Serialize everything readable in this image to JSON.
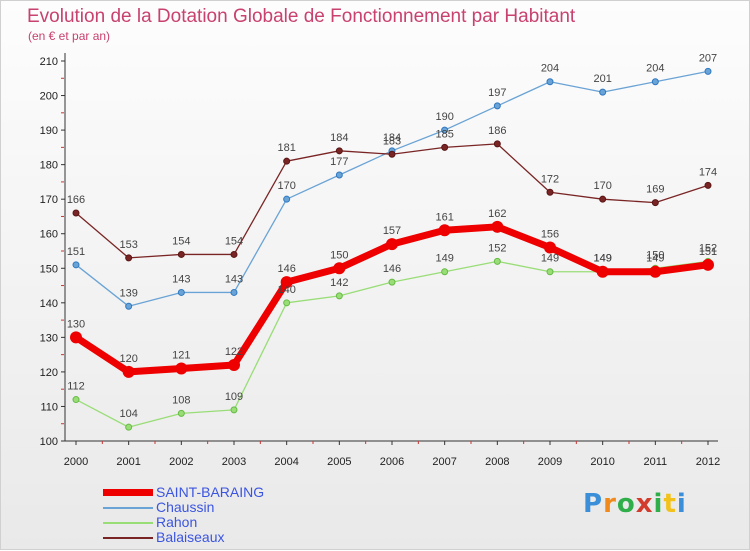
{
  "chart_data": {
    "type": "line",
    "title": "Evolution de la Dotation Globale de Fonctionnement par Habitant",
    "subtitle": "(en € et par an)",
    "xlabel": "",
    "ylabel": "",
    "x": [
      "2000",
      "2001",
      "2002",
      "2003",
      "2004",
      "2005",
      "2006",
      "2007",
      "2008",
      "2009",
      "2010",
      "2011",
      "2012"
    ],
    "ylim": [
      100,
      210
    ],
    "yticks": [
      100,
      110,
      120,
      130,
      140,
      150,
      160,
      170,
      180,
      190,
      200,
      210
    ],
    "grid": false,
    "legend_position": "bottom-left",
    "series": [
      {
        "name": "SAINT-BARAING",
        "color": "#ee0000",
        "values": [
          130,
          120,
          121,
          122,
          146,
          150,
          157,
          161,
          162,
          156,
          149,
          149,
          151
        ]
      },
      {
        "name": "Chaussin",
        "color": "#6aa3d5",
        "values": [
          151,
          139,
          143,
          143,
          170,
          177,
          184,
          190,
          197,
          204,
          201,
          204,
          207
        ]
      },
      {
        "name": "Rahon",
        "color": "#99dd77",
        "values": [
          112,
          104,
          108,
          109,
          140,
          142,
          146,
          149,
          152,
          149,
          149,
          150,
          152
        ]
      },
      {
        "name": "Balaiseaux",
        "color": "#7a2525",
        "values": [
          166,
          153,
          154,
          154,
          181,
          184,
          183,
          185,
          186,
          172,
          170,
          169,
          174
        ]
      }
    ],
    "data_labels": [
      {
        "series": "SAINT-BARAING",
        "labels": [
          "130",
          "120",
          "121",
          "122",
          "146",
          "150",
          "157",
          "161",
          "162",
          "156",
          "149",
          "149",
          "151"
        ]
      },
      {
        "series": "Chaussin",
        "labels": [
          "151",
          "139",
          "143",
          "143",
          "170",
          "177",
          "184",
          "190",
          "197",
          "204",
          "201",
          "204",
          "207"
        ]
      },
      {
        "series": "Rahon",
        "labels": [
          "112",
          "104",
          "108",
          "109",
          "140",
          "142",
          "146",
          "149",
          "152",
          "149",
          "149",
          "150",
          "152"
        ]
      },
      {
        "series": "Balaiseaux",
        "labels": [
          "166",
          "153",
          "154",
          "154",
          "181",
          "184",
          "183",
          "185",
          "186",
          "172",
          "170",
          "169",
          "174"
        ]
      }
    ]
  },
  "legend": {
    "items": [
      {
        "label": "SAINT-BARAING",
        "color": "#ee0000"
      },
      {
        "label": "Chaussin",
        "color": "#6aa3d5"
      },
      {
        "label": "Rahon",
        "color": "#99dd77"
      },
      {
        "label": "Balaiseaux",
        "color": "#7a2525"
      }
    ]
  },
  "logo": {
    "letters": [
      "P",
      "r",
      "o",
      "x",
      "i",
      "t",
      "i"
    ],
    "colors": [
      "#3b8fd8",
      "#f08a1c",
      "#2fae4a",
      "#d23c2c",
      "#2fae4a",
      "#f3c21a",
      "#3b8fd8"
    ]
  }
}
